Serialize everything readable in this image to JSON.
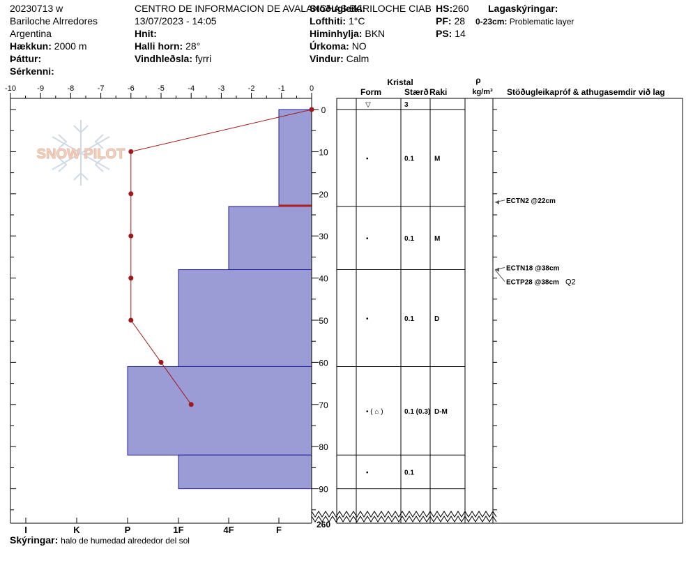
{
  "header": {
    "date_code": "20230713 w",
    "location": "Bariloche Alrredores",
    "country": "Argentina",
    "elevation_label": "Hækkun:",
    "elevation_value": "2000 m",
    "aspect_label": "Þáttur:",
    "features_label": "Sérkenni:",
    "org": "CENTRO DE INFORMACION DE AVALANCHAS BARILOCHE CIAB",
    "datetime": "13/07/2023 - 14:05",
    "coords_label": "Hnit:",
    "slope_label": "Halli horn:",
    "slope_value": "28°",
    "wind_load_label": "Vindhleðsla:",
    "wind_load_value": "fyrri",
    "stability_label": "Stöðugleiki:",
    "airtemp_label": "Lofthiti:",
    "airtemp_value": "1°C",
    "sky_label": "Himinhylja:",
    "sky_value": "BKN",
    "precip_label": "Úrkoma:",
    "precip_value": "NO",
    "wind_label": "Vindur:",
    "wind_value": "Calm",
    "hs_label": "HS:",
    "hs_value": "260",
    "pf_label": "PF:",
    "pf_value": "28",
    "ps_label": "PS:",
    "ps_value": "14",
    "layers_label": "Lagaskýringar:",
    "layer_note_range": "0-23cm:",
    "layer_note_text": "Problematic layer"
  },
  "columns": {
    "crystal": "Kristal",
    "form": "Form",
    "size": "Stærð",
    "moisture": "Raki",
    "rho": "ρ",
    "density_unit": "kg/m³",
    "tests": "Stöðugleikapróf & athugasemdir við lag",
    "surface_symbol": "▽",
    "surface_size": "3"
  },
  "logo_text": "SNOW PILOT",
  "footer": {
    "label": "Skýringar:",
    "text": "halo de humedad alrededor del sol"
  },
  "colors": {
    "hardness_fill": "#9b9bd6",
    "hardness_stroke": "#1f1f9a",
    "temp_line": "#a01818",
    "weak_layer": "#b02020"
  },
  "chart_data": {
    "type": "bar",
    "temperature_axis": {
      "ticks": [
        "-10",
        "-9",
        "-8",
        "-7",
        "-6",
        "-5",
        "-4",
        "-3",
        "-2",
        "-1",
        "0"
      ],
      "range": [
        -10,
        0
      ]
    },
    "depth_axis": {
      "ticks": [
        "0",
        "10",
        "20",
        "30",
        "40",
        "50",
        "60",
        "70",
        "80",
        "90"
      ],
      "bottom_label": "260",
      "range": [
        0,
        98
      ]
    },
    "hardness_axis": {
      "ticks": [
        "I",
        "K",
        "P",
        "1F",
        "4F",
        "F"
      ]
    },
    "hardness_layers": [
      {
        "top": 0,
        "bottom": 23,
        "hardness": "F"
      },
      {
        "top": 23,
        "bottom": 38,
        "hardness": "4F"
      },
      {
        "top": 38,
        "bottom": 61,
        "hardness": "1F"
      },
      {
        "top": 61,
        "bottom": 82,
        "hardness": "P"
      },
      {
        "top": 82,
        "bottom": 90,
        "hardness": "1F"
      }
    ],
    "temperature_profile": {
      "depth": [
        0,
        10,
        20,
        30,
        40,
        50,
        60,
        70
      ],
      "temp": [
        0,
        -6,
        -6,
        -6,
        -6,
        -6,
        -5,
        -4
      ]
    },
    "weak_layer_depth": 23,
    "boundaries": [
      23,
      38,
      61,
      82,
      90
    ],
    "layer_rows": [
      {
        "mid": 11.5,
        "form": "•",
        "size": "0.1",
        "moisture": "M"
      },
      {
        "mid": 30.5,
        "form": "•",
        "size": "0.1",
        "moisture": "M"
      },
      {
        "mid": 49.5,
        "form": "•",
        "size": "0.1",
        "moisture": "D"
      },
      {
        "mid": 71.5,
        "form": "• ( ⌂ )",
        "size": "0.1 (0.3)",
        "moisture": "D-M"
      },
      {
        "mid": 86,
        "form": "•",
        "size": "0.1",
        "moisture": ""
      }
    ],
    "tests": [
      {
        "depth": 22,
        "text": "ECTN2 @22cm",
        "extra": ""
      },
      {
        "depth": 38,
        "text": "ECTN18 @38cm",
        "extra": ""
      },
      {
        "depth": 38,
        "text": "ECTP28 @38cm",
        "extra": "Q2"
      }
    ]
  }
}
